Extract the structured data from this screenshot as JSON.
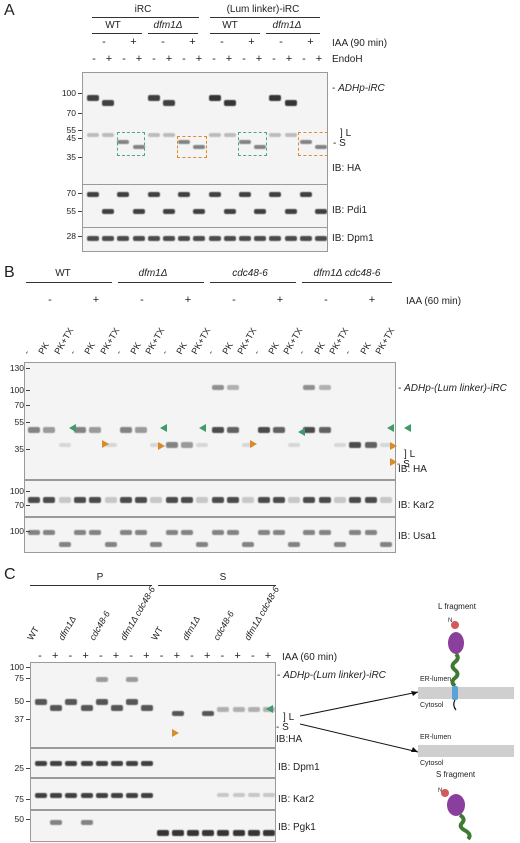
{
  "panelA": {
    "letter": "A",
    "groups": [
      "iRC",
      "(Lum linker)-iRC"
    ],
    "strains": [
      "WT",
      "dfm1Δ",
      "WT",
      "dfm1Δ"
    ],
    "iaa_signs": [
      "-",
      "+",
      "-",
      "+",
      "-",
      "+",
      "-",
      "+"
    ],
    "iaa_label": "IAA (90 min)",
    "endoh_signs": [
      "-",
      "+",
      "-",
      "+",
      "-",
      "+",
      "-",
      "+",
      "-",
      "+",
      "-",
      "+",
      "-",
      "+",
      "-",
      "+"
    ],
    "endoh_label": "EndoH",
    "ha_mw": [
      "100",
      "70",
      "55",
      "45",
      "35"
    ],
    "ha_species": "ADHp-iRC",
    "L": "L",
    "S": "S",
    "ha_ib": "IB: HA",
    "pdi_mw": [
      "70",
      "55"
    ],
    "pdi_ib": "IB: Pdi1",
    "dpm_mw": [
      "28"
    ],
    "dpm_ib": "IB: Dpm1"
  },
  "panelB": {
    "letter": "B",
    "strains": [
      "WT",
      "dfm1Δ",
      "cdc48-6",
      "dfm1Δ cdc48-6"
    ],
    "iaa_signs": [
      "-",
      "+",
      "-",
      "+",
      "-",
      "+",
      "-",
      "+"
    ],
    "iaa_label": "IAA (60 min)",
    "lanes": [
      "-",
      "PK",
      "PK+TX",
      "-",
      "PK",
      "PK+TX",
      "-",
      "PK",
      "PK+TX",
      "-",
      "PK",
      "PK+TX",
      "-",
      "PK",
      "PK+TX",
      "-",
      "PK",
      "PK+TX",
      "-",
      "PK",
      "PK+TX",
      "-",
      "PK",
      "PK+TX"
    ],
    "ha_mw": [
      "130",
      "100",
      "70",
      "55",
      "35"
    ],
    "ha_species": "ADHp-(Lum linker)-iRC",
    "L": "L",
    "S": "S",
    "ha_ib": "IB: HA",
    "kar_mw": [
      "100",
      "70"
    ],
    "kar_ib": "IB: Kar2",
    "usa_mw": [
      "100"
    ],
    "usa_ib": "IB: Usa1"
  },
  "panelC": {
    "letter": "C",
    "fractions": [
      "P",
      "S"
    ],
    "lanes": [
      "WT",
      "dfm1Δ",
      "cdc48-6",
      "dfm1Δ cdc48-6",
      "WT",
      "dfm1Δ",
      "cdc48-6",
      "dfm1Δ cdc48-6"
    ],
    "iaa_signs": [
      "-",
      "+",
      "-",
      "+",
      "-",
      "+",
      "-",
      "+",
      "-",
      "+",
      "-",
      "+",
      "-",
      "+",
      "-",
      "+"
    ],
    "iaa_label": "IAA (60 min)",
    "ha_mw": [
      "100",
      "75",
      "50",
      "37"
    ],
    "ha_species": "ADHp-(Lum linker)-iRC",
    "L": "L",
    "S": "S",
    "ha_ib": "IB:HA",
    "dpm_mw": [
      "25"
    ],
    "dpm_ib": "IB: Dpm1",
    "kar_mw": [
      "75"
    ],
    "kar_ib": "IB: Kar2",
    "pgk_mw": [
      "50"
    ],
    "pgk_ib": "IB: Pgk1",
    "diagram": {
      "l_fragment": "L fragment",
      "s_fragment": "S fragment",
      "er_lumen": "ER-lumen",
      "cytosol": "Cytosol",
      "n_term": "N"
    }
  },
  "colors": {
    "green_arrow": "#3f9a6e",
    "orange_arrow": "#d98a2b",
    "teal_box": "#4aa88c",
    "orange_box": "#e08a2a",
    "protein_purple": "#8a3f9c",
    "linker_green": "#3f7a34",
    "tm_blue": "#5aa3d8",
    "membrane_gray": "#cfcfcf"
  }
}
